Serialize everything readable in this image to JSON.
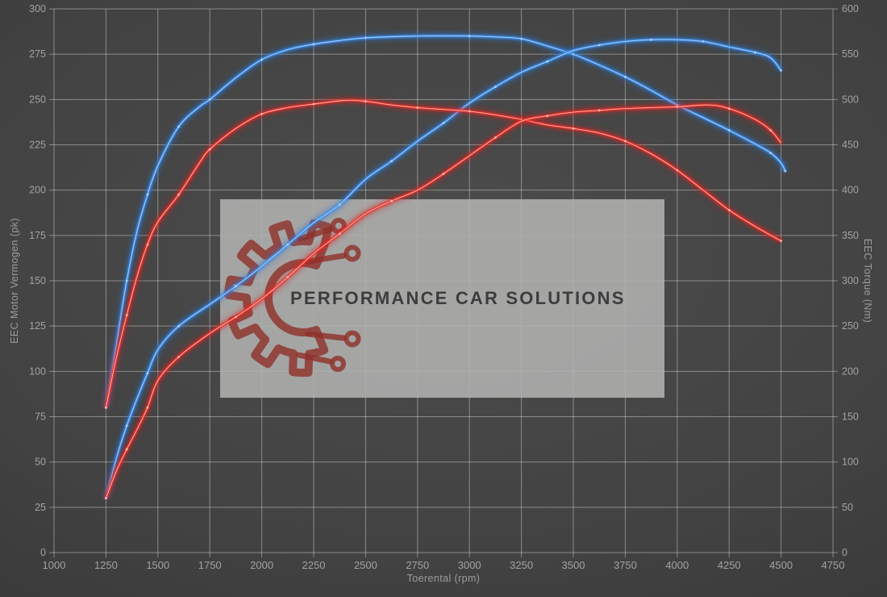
{
  "watermark": {
    "text": "PERFORMANCE CAR SOLUTIONS",
    "box_color": "#b2b2b1",
    "box_opacity": 0.88,
    "logo_color": "#8e2f28",
    "text_color": "#3d3d3d"
  },
  "axis_label_color": "#a2a2a2",
  "grid_color": "rgba(255,255,255,0.38)",
  "chart_data": {
    "type": "line",
    "title": "",
    "xlabel": "Toerental (rpm)",
    "ylabel_left": "EEC Motor Vermogen (pk)",
    "ylabel_right": "EEC Torque (Nm)",
    "x_range": [
      1000,
      4750
    ],
    "x_tick_step": 250,
    "y_left_range": [
      0,
      300
    ],
    "y_left_tick_step": 25,
    "y_right_range": [
      0,
      600
    ],
    "y_right_tick_step": 50,
    "grid": true,
    "legend": "none",
    "series": [
      {
        "name": "blue-torque",
        "axis": "right",
        "color": "#3e8ee6",
        "core": "#bcd8ff",
        "glow": "#2277dd",
        "points": [
          [
            1250,
            160
          ],
          [
            1300,
            230
          ],
          [
            1350,
            300
          ],
          [
            1400,
            355
          ],
          [
            1450,
            395
          ],
          [
            1500,
            427
          ],
          [
            1600,
            470
          ],
          [
            1700,
            492
          ],
          [
            1750,
            500
          ],
          [
            1875,
            524
          ],
          [
            2000,
            544
          ],
          [
            2125,
            555
          ],
          [
            2250,
            561
          ],
          [
            2375,
            565
          ],
          [
            2500,
            568
          ],
          [
            2750,
            570
          ],
          [
            3000,
            570
          ],
          [
            3125,
            569
          ],
          [
            3250,
            567
          ],
          [
            3375,
            559
          ],
          [
            3500,
            550
          ],
          [
            3625,
            538
          ],
          [
            3750,
            525
          ],
          [
            3875,
            510
          ],
          [
            4000,
            494
          ],
          [
            4125,
            480
          ],
          [
            4250,
            466
          ],
          [
            4375,
            451
          ],
          [
            4450,
            441
          ],
          [
            4500,
            430
          ],
          [
            4520,
            421
          ]
        ]
      },
      {
        "name": "blue-power",
        "axis": "left",
        "color": "#3e8ee6",
        "core": "#bcd8ff",
        "glow": "#2277dd",
        "points": [
          [
            1250,
            30
          ],
          [
            1300,
            52
          ],
          [
            1350,
            70
          ],
          [
            1400,
            85
          ],
          [
            1450,
            99
          ],
          [
            1500,
            112
          ],
          [
            1600,
            125
          ],
          [
            1750,
            137
          ],
          [
            1875,
            147
          ],
          [
            2000,
            158
          ],
          [
            2125,
            170
          ],
          [
            2250,
            182
          ],
          [
            2375,
            192
          ],
          [
            2500,
            206
          ],
          [
            2625,
            216
          ],
          [
            2750,
            227
          ],
          [
            2875,
            237
          ],
          [
            3000,
            248
          ],
          [
            3125,
            257
          ],
          [
            3250,
            265
          ],
          [
            3375,
            271
          ],
          [
            3500,
            277
          ],
          [
            3625,
            280
          ],
          [
            3750,
            282
          ],
          [
            3875,
            283
          ],
          [
            4000,
            283
          ],
          [
            4125,
            282
          ],
          [
            4250,
            279
          ],
          [
            4375,
            276
          ],
          [
            4450,
            273
          ],
          [
            4500,
            266
          ]
        ]
      },
      {
        "name": "red-torque",
        "axis": "right",
        "color": "#e8322a",
        "core": "#ffc9c0",
        "glow": "#dd1f1f",
        "points": [
          [
            1250,
            160
          ],
          [
            1300,
            215
          ],
          [
            1350,
            262
          ],
          [
            1400,
            305
          ],
          [
            1450,
            340
          ],
          [
            1500,
            365
          ],
          [
            1600,
            395
          ],
          [
            1700,
            430
          ],
          [
            1750,
            445
          ],
          [
            1875,
            468
          ],
          [
            2000,
            484
          ],
          [
            2125,
            491
          ],
          [
            2250,
            495
          ],
          [
            2400,
            499
          ],
          [
            2500,
            498
          ],
          [
            2625,
            494
          ],
          [
            2750,
            491
          ],
          [
            2875,
            489
          ],
          [
            3000,
            487
          ],
          [
            3125,
            483
          ],
          [
            3250,
            478
          ],
          [
            3375,
            472
          ],
          [
            3500,
            468
          ],
          [
            3625,
            463
          ],
          [
            3750,
            454
          ],
          [
            3875,
            440
          ],
          [
            4000,
            422
          ],
          [
            4125,
            400
          ],
          [
            4250,
            378
          ],
          [
            4375,
            360
          ],
          [
            4500,
            344
          ]
        ]
      },
      {
        "name": "red-power",
        "axis": "left",
        "color": "#e8322a",
        "core": "#ffc9c0",
        "glow": "#dd1f1f",
        "points": [
          [
            1250,
            30
          ],
          [
            1300,
            45
          ],
          [
            1350,
            57
          ],
          [
            1400,
            68
          ],
          [
            1450,
            80
          ],
          [
            1500,
            95
          ],
          [
            1600,
            108
          ],
          [
            1750,
            121
          ],
          [
            1875,
            130
          ],
          [
            2000,
            140
          ],
          [
            2125,
            152
          ],
          [
            2250,
            165
          ],
          [
            2375,
            176
          ],
          [
            2500,
            187
          ],
          [
            2625,
            194
          ],
          [
            2750,
            200
          ],
          [
            2875,
            209
          ],
          [
            3000,
            219
          ],
          [
            3125,
            229
          ],
          [
            3250,
            238
          ],
          [
            3375,
            241
          ],
          [
            3500,
            243
          ],
          [
            3625,
            244
          ],
          [
            3750,
            245
          ],
          [
            4000,
            246
          ],
          [
            4150,
            247
          ],
          [
            4250,
            245
          ],
          [
            4375,
            239
          ],
          [
            4450,
            233
          ],
          [
            4500,
            226
          ]
        ]
      }
    ]
  }
}
